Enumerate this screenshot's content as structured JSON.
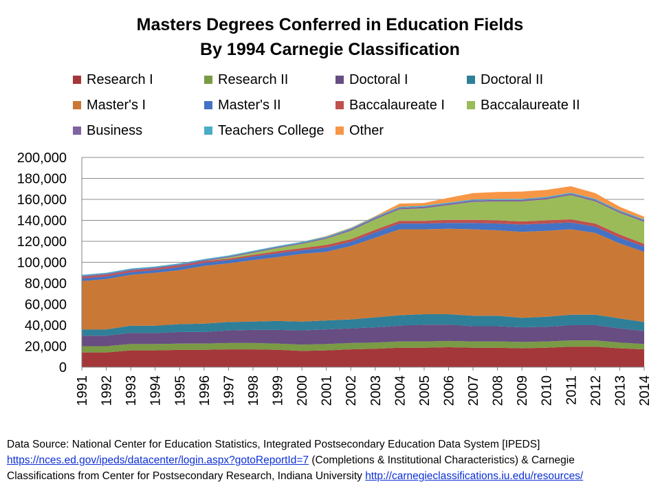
{
  "chart_data": {
    "type": "area",
    "stacked": true,
    "title": "Masters Degrees Conferred in Education Fields",
    "subtitle": "By 1994 Carnegie Classification",
    "xlabel": "",
    "ylabel": "",
    "ylim": [
      0,
      200000
    ],
    "y_ticks": [
      "0",
      "20,000",
      "40,000",
      "60,000",
      "80,000",
      "100,000",
      "120,000",
      "140,000",
      "160,000",
      "180,000",
      "200,000"
    ],
    "grid": true,
    "legend_position": "top",
    "categories": [
      "1991",
      "1992",
      "1993",
      "1994",
      "1995",
      "1996",
      "1997",
      "1998",
      "1999",
      "2000",
      "2001",
      "2002",
      "2003",
      "2004",
      "2005",
      "2006",
      "2007",
      "2008",
      "2009",
      "2010",
      "2011",
      "2012",
      "2013",
      "2014"
    ],
    "series": [
      {
        "name": "Research I",
        "color": "#a4373a",
        "values": [
          14000,
          14000,
          16000,
          16000,
          16500,
          16500,
          17000,
          17000,
          16500,
          15500,
          16000,
          17000,
          17500,
          18500,
          18500,
          19000,
          18500,
          18500,
          18000,
          18500,
          19500,
          19500,
          18000,
          17000
        ]
      },
      {
        "name": "Research II",
        "color": "#7a9a45",
        "values": [
          6000,
          6000,
          6000,
          6000,
          6000,
          6000,
          6000,
          6000,
          6000,
          6000,
          6000,
          6000,
          6000,
          6000,
          6000,
          6000,
          6000,
          6000,
          6000,
          6000,
          6000,
          6000,
          5500,
          5000
        ]
      },
      {
        "name": "Doctoral I",
        "color": "#674d82",
        "values": [
          10000,
          10000,
          10500,
          10500,
          11000,
          11000,
          12000,
          12500,
          13000,
          13500,
          14000,
          14000,
          14500,
          15000,
          16000,
          15500,
          14500,
          14500,
          14000,
          14000,
          14500,
          14500,
          13500,
          12500
        ]
      },
      {
        "name": "Doctoral II",
        "color": "#2f7f98",
        "values": [
          6000,
          6000,
          7000,
          7000,
          7500,
          8000,
          8000,
          8000,
          8500,
          8500,
          8500,
          8500,
          9500,
          10000,
          10000,
          10000,
          10000,
          10000,
          9000,
          9500,
          10000,
          10000,
          9500,
          8500
        ]
      },
      {
        "name": "Master's I",
        "color": "#ca7836",
        "values": [
          46000,
          48000,
          48500,
          50500,
          51500,
          55000,
          56000,
          58500,
          61000,
          64500,
          65500,
          70000,
          76000,
          82000,
          81000,
          81500,
          82500,
          81500,
          82000,
          82000,
          81500,
          78000,
          71500,
          67000
        ]
      },
      {
        "name": "Master's II",
        "color": "#4472c4",
        "values": [
          2500,
          2500,
          2500,
          2500,
          3000,
          3000,
          3000,
          3500,
          3500,
          3500,
          4000,
          4000,
          5000,
          5500,
          5500,
          5500,
          6000,
          6500,
          7000,
          7000,
          6500,
          6000,
          5500,
          5000
        ]
      },
      {
        "name": "Baccalaureate I",
        "color": "#c0504d",
        "values": [
          1500,
          1500,
          1500,
          1500,
          1500,
          1500,
          1500,
          1500,
          2000,
          2000,
          2500,
          2500,
          2500,
          2500,
          2500,
          3000,
          3000,
          3000,
          3000,
          3000,
          3000,
          3000,
          3000,
          2500
        ]
      },
      {
        "name": "Baccalaureate II",
        "color": "#9bbb59",
        "values": [
          0,
          0,
          0,
          0,
          0,
          0,
          1000,
          2000,
          3000,
          4000,
          6000,
          8000,
          10000,
          11000,
          12000,
          14000,
          17000,
          18000,
          19000,
          20000,
          23000,
          21000,
          20500,
          21000
        ]
      },
      {
        "name": "Business",
        "color": "#8064a2",
        "values": [
          1000,
          1000,
          1000,
          1000,
          1000,
          1000,
          1000,
          1000,
          1000,
          1000,
          1000,
          1500,
          1500,
          1500,
          1500,
          1500,
          1500,
          1500,
          1500,
          1500,
          1500,
          1500,
          1500,
          1500
        ]
      },
      {
        "name": "Teachers College",
        "color": "#4bacc6",
        "values": [
          1000,
          1000,
          1000,
          1000,
          1000,
          1000,
          1000,
          1000,
          1000,
          1000,
          1000,
          1000,
          1000,
          1000,
          1000,
          1000,
          1000,
          1000,
          1000,
          1000,
          1000,
          1000,
          1000,
          1000
        ]
      },
      {
        "name": "Other",
        "color": "#f79646",
        "values": [
          0,
          0,
          0,
          0,
          0,
          0,
          0,
          0,
          0,
          0,
          500,
          500,
          500,
          3000,
          2500,
          4500,
          6000,
          6500,
          7000,
          6500,
          6000,
          5500,
          3500,
          2500
        ]
      }
    ]
  },
  "source": {
    "line1": "Data Source: National Center for Education Statistics, Integrated Postsecondary Education Data System [IPEDS]",
    "link1": "https://nces.ed.gov/ipeds/datacenter/login.aspx?gotoReportId=7",
    "line2_rest": " (Completions & Institutional Characteristics) & Carnegie",
    "line3": "Classifications from Center for Postsecondary Research, Indiana University ",
    "link2": "http://carnegieclassifications.iu.edu/resources/"
  }
}
